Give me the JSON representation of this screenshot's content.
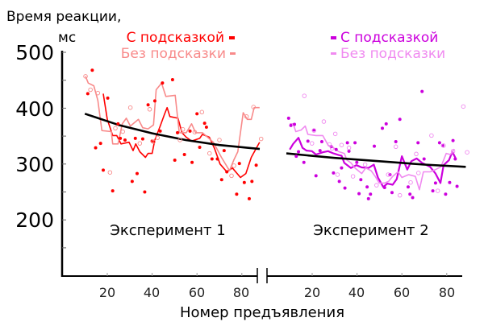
{
  "chart_data": {
    "type": "line",
    "ylabel_line1": "Время реакции,",
    "ylabel_line2": "мс",
    "xlabel": "Номер предъявления",
    "ylim": [
      150,
      500
    ],
    "y_ticks": [
      "500",
      "400",
      "300",
      "200"
    ],
    "x_ticks": [
      "20",
      "40",
      "60",
      "80"
    ],
    "grid": false,
    "panels": [
      {
        "label": "Эксперимент 1",
        "legend": [
          {
            "name": "С подсказкой",
            "color": "#ff0000"
          },
          {
            "name": "Без подсказки",
            "color": "#f88a8a"
          }
        ],
        "series": [
          {
            "name": "С подсказкой",
            "color": "#ff0000",
            "type": "line",
            "x": [
              18.2,
              20.0,
              22.4,
              24.2,
              26.1,
              29.7,
              31.5,
              32.7,
              34.5,
              37.0,
              38.2,
              40.0,
              41.2,
              43.6,
              45.5,
              46.7,
              47.9,
              51.5,
              53.3,
              55.2,
              57.6,
              61.2,
              62.4,
              65.5,
              67.9,
              70.3,
              73.3,
              75.8,
              79.4,
              81.8,
              84.2,
              87.9
            ],
            "y": [
              426,
              380,
              351,
              351,
              336,
              339,
              324,
              336,
              322,
              312,
              319,
              319,
              343,
              368,
              389,
              401,
              385,
              382,
              356,
              348,
              341,
              346,
              353,
              348,
              327,
              300,
              286,
              293,
              276,
              283,
              312,
              339
            ]
          },
          {
            "name": "Без подсказки",
            "color": "#f88a8a",
            "type": "line",
            "x": [
              10.3,
              11.5,
              14.0,
              15.8,
              17.6,
              21.8,
              22.4,
              24.8,
              26.7,
              28.5,
              30.3,
              33.9,
              35.8,
              38.2,
              40.6,
              41.8,
              44.2,
              46.1,
              50.3,
              52.1,
              55.2,
              57.6,
              59.4,
              62.4,
              67.3,
              70.9,
              74.5,
              76.4,
              78.2,
              80.6,
              82.4,
              84.2,
              85.5,
              87.9
            ],
            "y": [
              457,
              445,
              440,
              414,
              360,
              358,
              336,
              336,
              372,
              382,
              368,
              380,
              365,
              363,
              370,
              433,
              445,
              421,
              423,
              356,
              356,
              372,
              356,
              356,
              339,
              312,
              288,
              307,
              322,
              392,
              380,
              380,
              401,
              401
            ]
          },
          {
            "name": "С подсказкой",
            "color": "#ff0000",
            "type": "scatter-filled",
            "x": [
              13.3,
              11.3,
              14.8,
              17.0,
              18.2,
              20.2,
              22.4,
              24.8,
              25.8,
              27.9,
              31.1,
              32.5,
              33.3,
              35.8,
              36.7,
              38.2,
              40.0,
              41.2,
              43.6,
              44.6,
              49.1,
              50.1,
              51.3,
              54.4,
              56.9,
              57.8,
              60.0,
              61.2,
              63.4,
              64.2,
              66.7,
              69.1,
              71.0,
              72.1,
              73.3,
              77.7,
              78.9,
              81.1,
              83.3,
              84.5,
              86.4
            ],
            "y": [
              468,
              426,
              329,
              337,
              289,
              418,
              252,
              372,
              346,
              343,
              269,
              346,
              283,
              345,
              250,
              406,
              341,
              413,
              359,
              445,
              451,
              307,
              356,
              317,
              359,
              303,
              390,
              330,
              373,
              366,
              309,
              309,
              272,
              324,
              286,
              246,
              301,
              267,
              238,
              269,
              298
            ]
          },
          {
            "name": "Без подсказки",
            "color": "#f88a8a",
            "type": "scatter-open",
            "x": [
              10.3,
              12.5,
              15.8,
              21.2,
              23.6,
              26.9,
              30.3,
              34.5,
              38.9,
              40.6,
              42.4,
              52.4,
              53.7,
              59.0,
              62.2,
              65.6,
              70.0,
              75.4,
              76.5,
              82.1,
              85.2,
              88.6
            ],
            "y": [
              457,
              433,
              427,
              285,
              364,
              358,
              401,
              337,
              398,
              340,
              347,
              343,
              362,
              357,
              393,
              319,
              343,
              279,
              297,
              385,
              402,
              345
            ]
          },
          {
            "type": "fit",
            "color": "#000000",
            "x": [
              10,
              25,
              40,
              55,
              70,
              88
            ],
            "y": [
              390,
              370,
              355,
              343,
              334,
              327
            ]
          }
        ]
      },
      {
        "label": "Эксперимент 2",
        "legend": [
          {
            "name": "С подсказкой",
            "color": "#cc00dd"
          },
          {
            "name": "Без подсказки",
            "color": "#f08af0"
          }
        ],
        "series": [
          {
            "name": "С подсказкой",
            "color": "#cc00dd",
            "type": "line",
            "x": [
              10.0,
              11.5,
              13.9,
              15.7,
              17.5,
              19.9,
              21.7,
              24.7,
              27.1,
              29.5,
              31.9,
              33.1,
              34.3,
              37.3,
              39.7,
              42.1,
              45.1,
              47.5,
              49.3,
              51.7,
              53.5,
              55.9,
              57.7,
              60.0,
              62.4,
              64.2,
              66.6,
              69.0,
              72.6,
              75.0,
              77.2,
              78.6,
              81.0,
              82.5,
              84.0
            ],
            "y": [
              326,
              336,
              347,
              329,
              324,
              323,
              317,
              321,
              323,
              319,
              316,
              315,
              302,
              293,
              298,
              294,
              293,
              299,
              276,
              259,
              265,
              263,
              273,
              314,
              290,
              305,
              310,
              302,
              295,
              283,
              266,
              298,
              307,
              322,
              310
            ]
          },
          {
            "name": "Без подсказки",
            "color": "#f08af0",
            "type": "line",
            "x": [
              10.0,
              11.5,
              12.7,
              15.1,
              16.9,
              18.1,
              21.7,
              24.7,
              27.1,
              29.5,
              31.9,
              34.3,
              35.5,
              37.3,
              39.1,
              42.1,
              43.9,
              46.3,
              48.1,
              49.9,
              52.3,
              54.1,
              55.9,
              58.3,
              60.0,
              63.0,
              66.0,
              67.8,
              69.6,
              72.6,
              75.0,
              77.4,
              79.8,
              81.6,
              83.4
            ],
            "y": [
              372,
              372,
              358,
              361,
              368,
              353,
              351,
              351,
              334,
              329,
              322,
              319,
              307,
              302,
              293,
              283,
              293,
              288,
              278,
              266,
              266,
              269,
              278,
              286,
              276,
              281,
              278,
              254,
              286,
              286,
              290,
              295,
              319,
              317,
              327
            ]
          },
          {
            "name": "С подсказкой",
            "color": "#cc00dd",
            "type": "scatter-filled",
            "x": [
              9.5,
              10.5,
              12.1,
              13.9,
              12.9,
              16.3,
              18.1,
              20.8,
              21.7,
              23.5,
              24.3,
              28.5,
              29.5,
              30.7,
              32.1,
              34.6,
              33.1,
              35.7,
              36.4,
              39.1,
              39.9,
              41.7,
              40.9,
              44.5,
              45.1,
              46.0,
              47.7,
              51.3,
              53.0,
              52.3,
              54.7,
              55.6,
              57.3,
              59.1,
              62.8,
              63.6,
              64.8,
              67.2,
              69.0,
              69.9,
              73.8,
              75.0,
              76.8,
              78.2,
              79.5,
              81.3,
              82.8,
              84.6,
              83.8
            ],
            "y": [
              382,
              369,
              371,
              322,
              314,
              303,
              341,
              361,
              279,
              324,
              340,
              331,
              284,
              326,
              269,
              257,
              293,
              338,
              323,
              338,
              303,
              272,
              247,
              259,
              238,
              246,
              332,
              364,
              372,
              258,
              281,
              249,
              340,
              380,
              259,
              246,
              240,
              338,
              430,
              309,
              252,
              266,
              338,
              333,
              246,
              267,
              342,
              260,
              309
            ]
          },
          {
            "name": "Без подсказки",
            "color": "#f08af0",
            "type": "scatter-open",
            "x": [
              16.5,
              25.2,
              20.8,
              30.3,
              19.9,
              27.7,
              28.9,
              31.3,
              33.1,
              36.4,
              38.2,
              43.6,
              48.7,
              53.9,
              57.3,
              59.1,
              63.9,
              66.4,
              67.4,
              73.2,
              76.0,
              78.6,
              82.8,
              87.4,
              89.1
            ],
            "y": [
              422,
              376,
              360,
              354,
              337,
              335,
              328,
              281,
              334,
              329,
              278,
              299,
              262,
              281,
              331,
              244,
              267,
              318,
              284,
              351,
              252,
              333,
              323,
              403,
              321
            ]
          },
          {
            "type": "fit",
            "color": "#000000",
            "x": [
              8.5,
              30,
              50,
              70,
              88.5
            ],
            "y": [
              319,
              311,
              305,
              299,
              295
            ]
          }
        ]
      }
    ]
  }
}
